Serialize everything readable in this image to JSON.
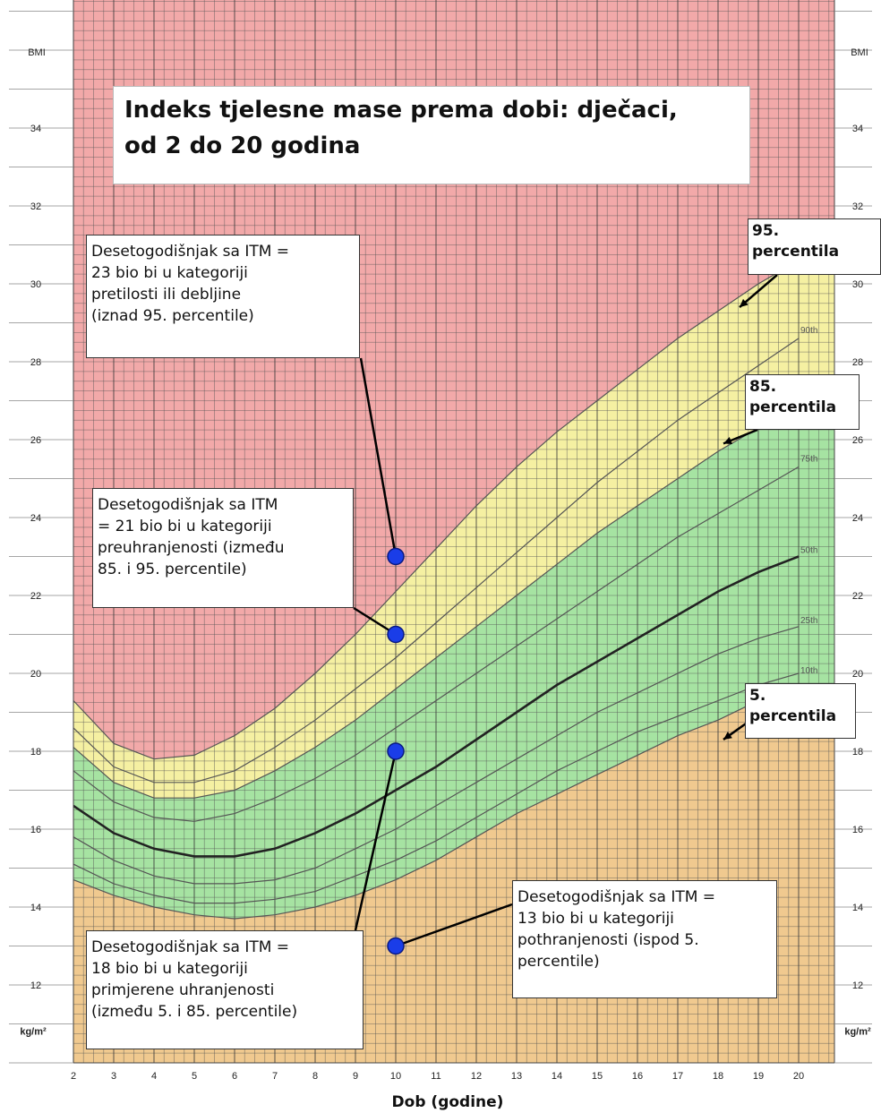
{
  "chart_data": {
    "type": "line",
    "title": "Indeks tjelesne mase prema dobi: dječaci, od 2 do 20 godina",
    "xlabel": "Dob (godine)",
    "y_axis_top_label": "BMI",
    "y_axis_unit": "kg/m²",
    "xlim": [
      2,
      20.9
    ],
    "ylim": [
      10.8,
      36.2
    ],
    "x_ticks": [
      2,
      3,
      4,
      5,
      6,
      7,
      8,
      9,
      10,
      11,
      12,
      13,
      14,
      15,
      16,
      17,
      18,
      19,
      20
    ],
    "y_ticks": [
      12,
      14,
      16,
      18,
      20,
      22,
      24,
      26,
      28,
      30,
      32,
      34
    ],
    "x": [
      2,
      3,
      4,
      5,
      6,
      7,
      8,
      9,
      10,
      11,
      12,
      13,
      14,
      15,
      16,
      17,
      18,
      19,
      20
    ],
    "series": [
      {
        "name": "95th",
        "values": [
          19.3,
          18.2,
          17.8,
          17.9,
          18.4,
          19.1,
          20.0,
          21.0,
          22.1,
          23.2,
          24.3,
          25.3,
          26.2,
          27.0,
          27.8,
          28.6,
          29.3,
          30.0,
          30.6
        ]
      },
      {
        "name": "90th",
        "values": [
          18.6,
          17.6,
          17.2,
          17.2,
          17.5,
          18.1,
          18.8,
          19.6,
          20.4,
          21.3,
          22.2,
          23.1,
          24.0,
          24.9,
          25.7,
          26.5,
          27.2,
          27.9,
          28.6
        ]
      },
      {
        "name": "85th",
        "values": [
          18.1,
          17.2,
          16.8,
          16.8,
          17.0,
          17.5,
          18.1,
          18.8,
          19.6,
          20.4,
          21.2,
          22.0,
          22.8,
          23.6,
          24.3,
          25.0,
          25.7,
          26.3,
          26.9
        ]
      },
      {
        "name": "75th",
        "values": [
          17.5,
          16.7,
          16.3,
          16.2,
          16.4,
          16.8,
          17.3,
          17.9,
          18.6,
          19.3,
          20.0,
          20.7,
          21.4,
          22.1,
          22.8,
          23.5,
          24.1,
          24.7,
          25.3
        ]
      },
      {
        "name": "50th",
        "values": [
          16.6,
          15.9,
          15.5,
          15.3,
          15.3,
          15.5,
          15.9,
          16.4,
          17.0,
          17.6,
          18.3,
          19.0,
          19.7,
          20.3,
          20.9,
          21.5,
          22.1,
          22.6,
          23.0
        ]
      },
      {
        "name": "25th",
        "values": [
          15.8,
          15.2,
          14.8,
          14.6,
          14.6,
          14.7,
          15.0,
          15.5,
          16.0,
          16.6,
          17.2,
          17.8,
          18.4,
          19.0,
          19.5,
          20.0,
          20.5,
          20.9,
          21.2
        ]
      },
      {
        "name": "10th",
        "values": [
          15.1,
          14.6,
          14.3,
          14.1,
          14.1,
          14.2,
          14.4,
          14.8,
          15.2,
          15.7,
          16.3,
          16.9,
          17.5,
          18.0,
          18.5,
          18.9,
          19.3,
          19.7,
          20.0
        ]
      },
      {
        "name": "",
        "values": [
          14.7,
          14.3,
          14.0,
          13.8,
          13.7,
          13.8,
          14.0,
          14.3,
          14.7,
          15.2,
          15.8,
          16.4,
          16.9,
          17.4,
          17.9,
          18.4,
          18.8,
          19.3,
          19.5
        ]
      }
    ],
    "points": [
      {
        "x": 10,
        "y": 23
      },
      {
        "x": 10,
        "y": 21
      },
      {
        "x": 10,
        "y": 18
      },
      {
        "x": 10,
        "y": 13
      }
    ],
    "zone_colors": {
      "obese": "#f2a9a9",
      "overweight": "#f5f0a2",
      "healthy": "#a6e3a2",
      "underweight": "#f0c98f"
    },
    "point_color": "#1a3de8"
  },
  "title_box": {
    "line1": "Indeks tjelesne mase prema dobi: dječaci,",
    "line2": "od 2 do 20 godina"
  },
  "annotations": {
    "obese": [
      "Desetogodišnjak sa ITM =",
      "23 bio bi u kategoriji",
      "pretilosti ili debljine",
      "(iznad 95. percentile)"
    ],
    "overweight": [
      "Desetogodišnjak sa ITM",
      "= 21 bio bi u kategoriji",
      "preuhranjenosti (između",
      "85. i 95. percentile)"
    ],
    "healthy": [
      "Desetogodišnjak sa ITM =",
      "18 bio bi u kategoriji",
      "primjerene uhranjenosti",
      "(između 5. i 85. percentile)"
    ],
    "underweight": [
      "Desetogodišnjak sa ITM =",
      "13 bio bi u kategoriji",
      "pothranjenosti (ispod 5.",
      "percentile)"
    ]
  },
  "percentile_labels": {
    "p95": [
      "95.",
      "percentila"
    ],
    "p85": [
      "85.",
      "percentila"
    ],
    "p5": [
      "5.",
      "percentila"
    ]
  }
}
